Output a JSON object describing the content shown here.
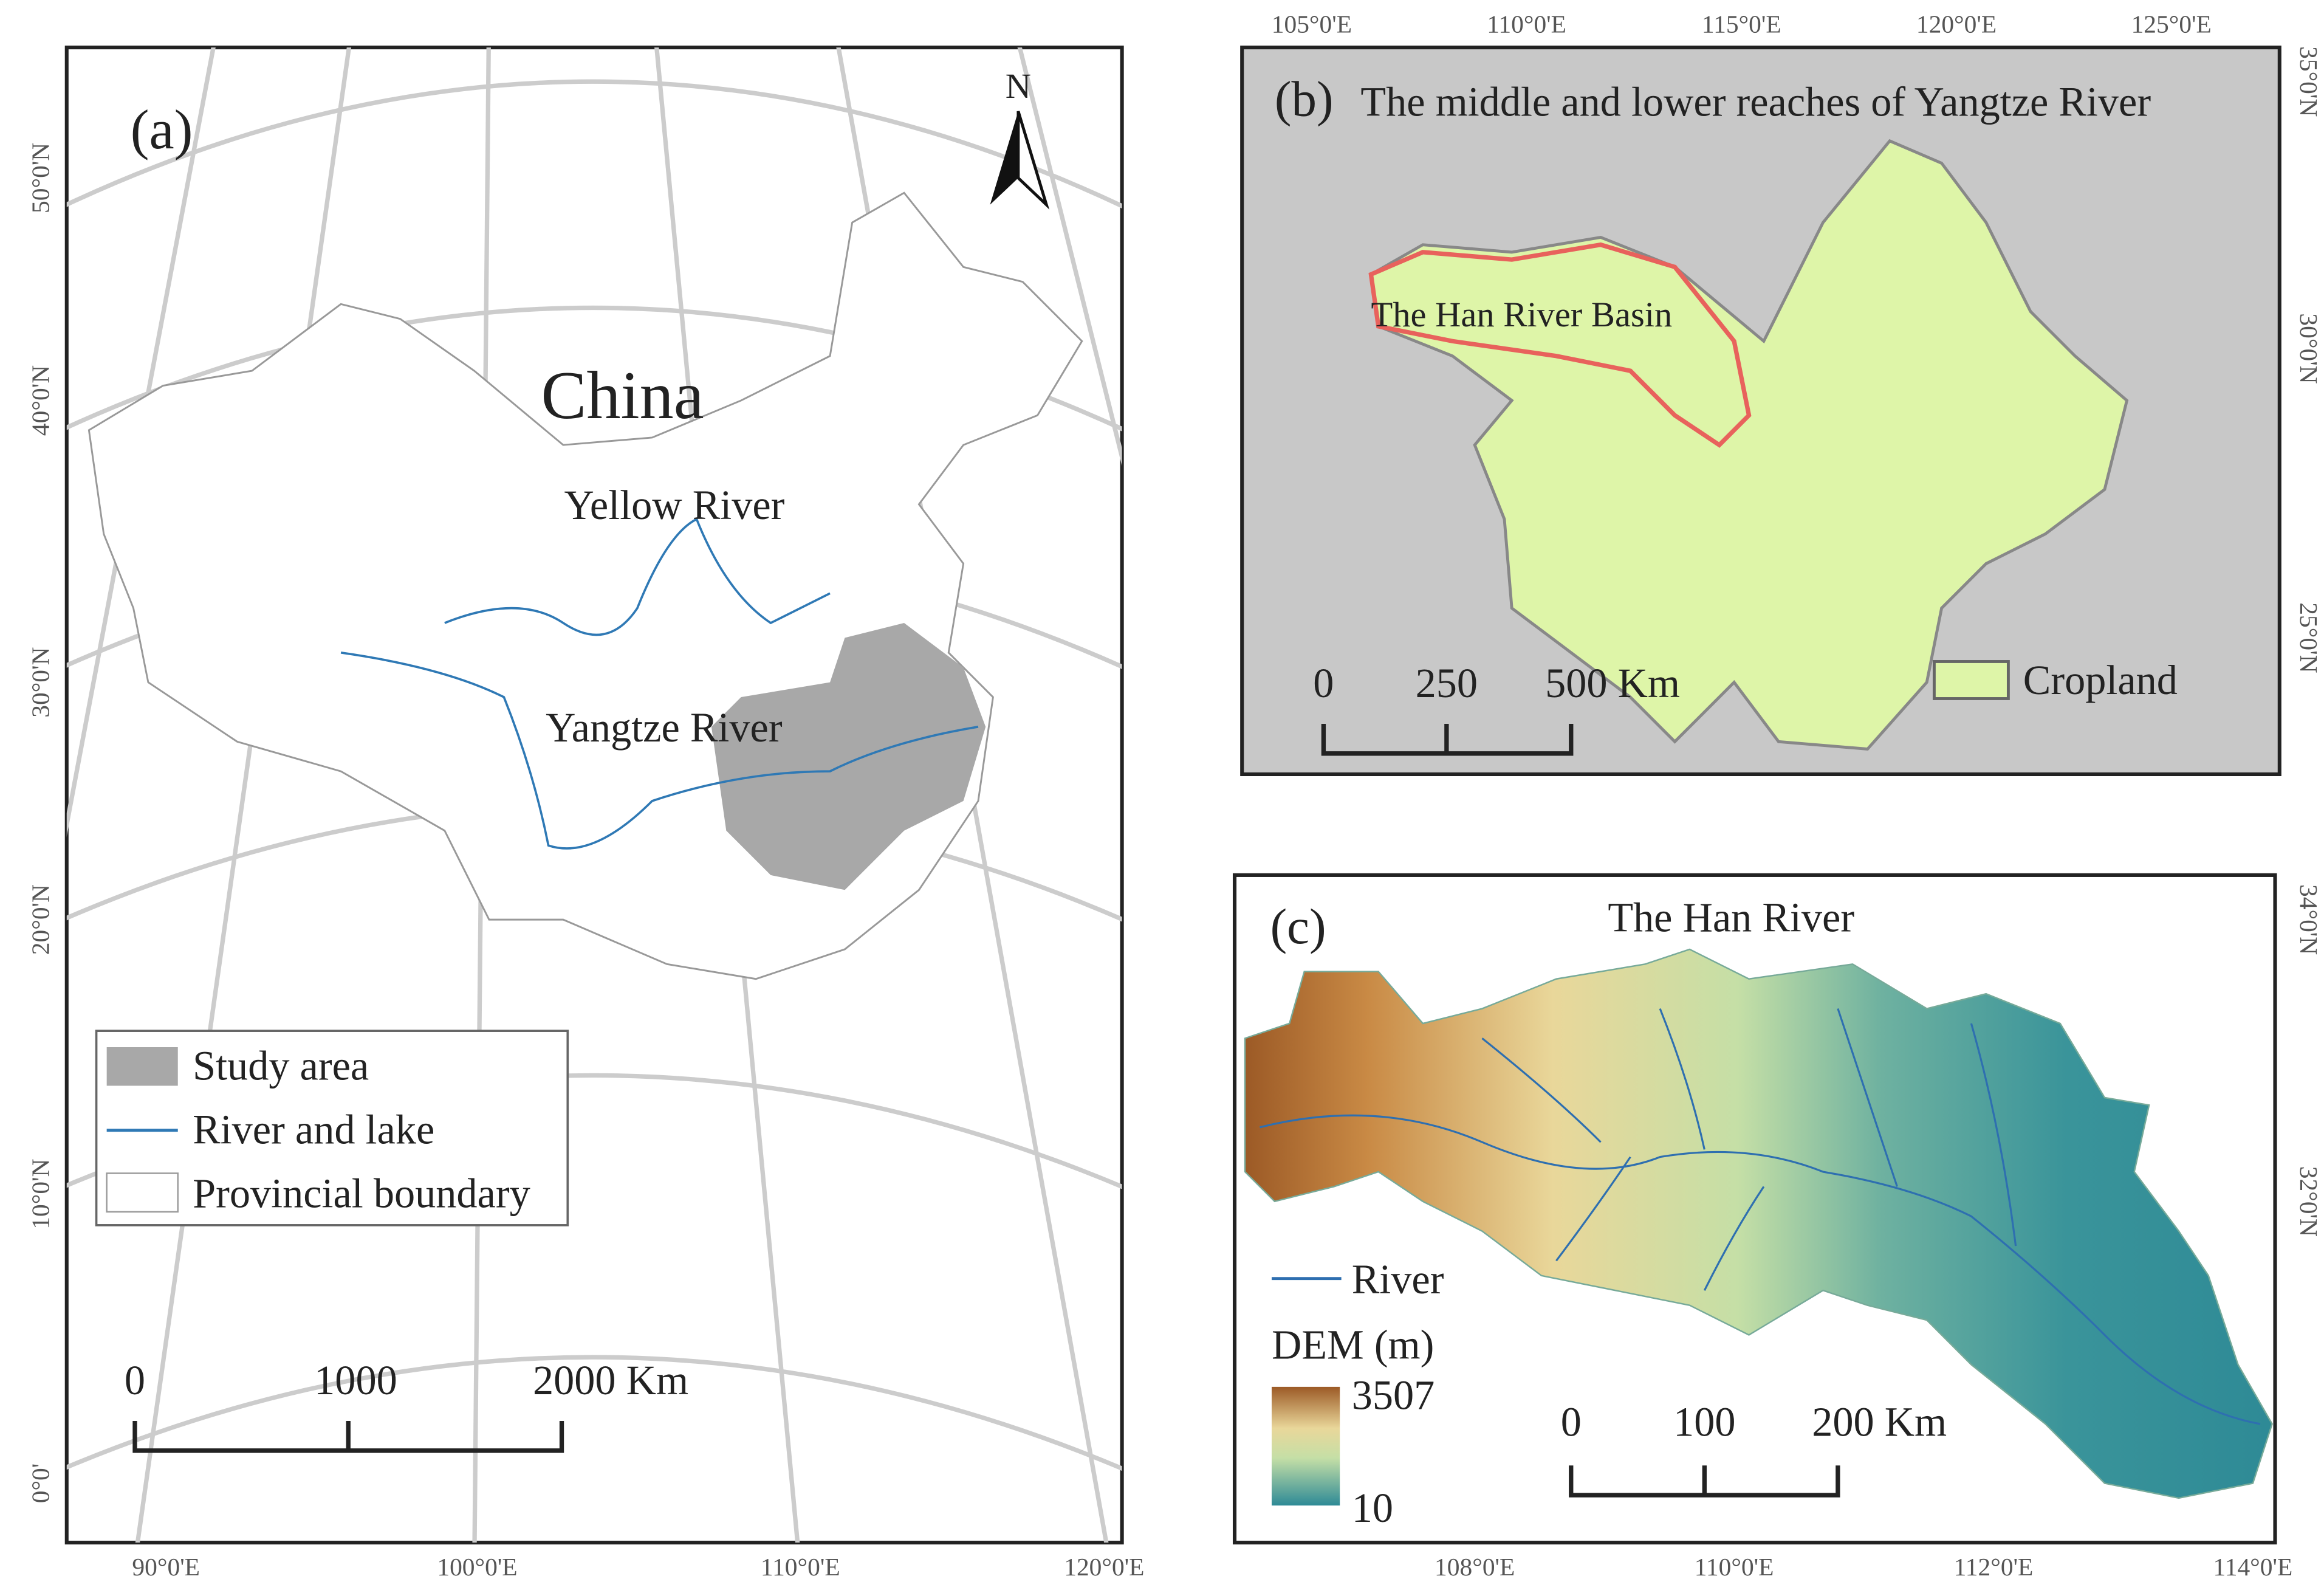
{
  "panel_a": {
    "label": "(a)",
    "north": "N",
    "country": "China",
    "rivers": [
      "Yellow River",
      "Yangtze River"
    ],
    "lat_labels": [
      "50°0'N",
      "40°0'N",
      "30°0'N",
      "20°0'N",
      "10°0'N",
      "0°0'"
    ],
    "lon_labels": [
      "90°0'E",
      "100°0'E",
      "110°0'E",
      "120°0'E"
    ],
    "legend": [
      "Study area",
      "River and lake",
      "Provincial boundary"
    ],
    "scale_bar": [
      "0",
      "1000",
      "2000 Km"
    ]
  },
  "panel_b": {
    "label": "(b)",
    "title": "The middle and lower reaches of Yangtze River",
    "basin_label": "The Han River Basin",
    "lon_labels": [
      "105°0'E",
      "110°0'E",
      "115°0'E",
      "120°0'E",
      "125°0'E"
    ],
    "lat_labels": [
      "35°0'N",
      "30°0'N",
      "25°0'N"
    ],
    "legend": [
      "Cropland"
    ],
    "scale_bar": [
      "0",
      "250",
      "500 Km"
    ]
  },
  "panel_c": {
    "label": "(c)",
    "title": "The Han River",
    "legend_river": "River",
    "dem_title": "DEM (m)",
    "dem_max": "3507",
    "dem_min": "10",
    "scale_bar": [
      "0",
      "100",
      "200 Km"
    ],
    "lon_labels": [
      "108°0'E",
      "110°0'E",
      "112°0'E",
      "114°0'E"
    ],
    "lat_labels": [
      "34°0'N",
      "32°0'N"
    ]
  }
}
